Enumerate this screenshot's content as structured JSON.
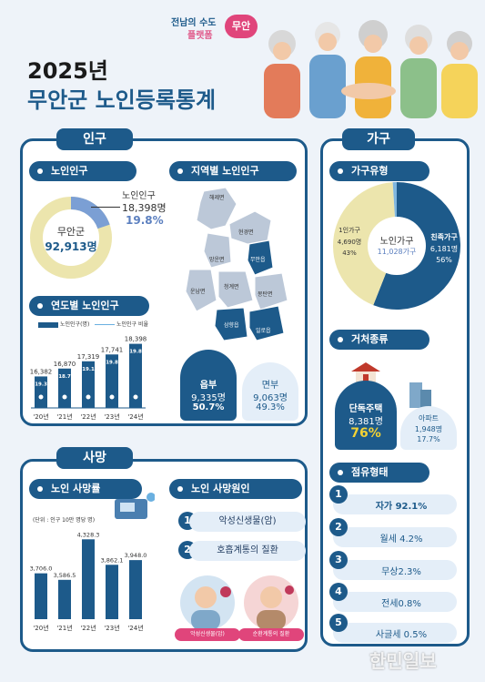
{
  "header": {
    "logo_line1": "전남의 수도",
    "logo_line2": "플랫폼",
    "logo_badge": "무안",
    "year": "2025년",
    "title": "무안군 노인등록통계",
    "watermark": "한민일보"
  },
  "population": {
    "tab": "인구",
    "elderly_header": "노인인구",
    "county_label": "무안군",
    "county_total": "92,913명",
    "elderly_label": "노인인구",
    "elderly_count": "18,398명",
    "elderly_ratio": "19.8%",
    "yearly_header": "연도별 노인인구",
    "legend_count": "노인인구(명)",
    "legend_ratio": "노인인구 비율"
  },
  "region": {
    "header": "지역별 노인인구",
    "area_labels": [
      "해제면",
      "현경면",
      "운남면",
      "망운면",
      "청계면",
      "무안읍",
      "몽탄면",
      "삼향읍",
      "일로읍"
    ],
    "eup_label": "읍부",
    "eup_count": "9,335명",
    "eup_ratio": "50.7%",
    "myeon_label": "면부",
    "myeon_count": "9,063명",
    "myeon_ratio": "49.3%"
  },
  "household": {
    "tab": "가구",
    "type_header": "가구유형",
    "center_label": "노인가구",
    "center_value": "11,028가구",
    "kin_label": "친족가구",
    "kin_count": "6,181명",
    "kin_ratio": "56%",
    "single_label": "1인가구",
    "single_count": "4,690명",
    "single_ratio": "43%",
    "residence_header": "거처종류",
    "house_label": "단독주택",
    "house_count": "8,381명",
    "house_ratio": "76%",
    "apt_label": "아파트",
    "apt_count": "1,948명",
    "apt_ratio": "17.7%",
    "tenure_header": "점유형태",
    "tenure": [
      {
        "num": "1",
        "label": "자가 92.1%"
      },
      {
        "num": "2",
        "label": "월세 4.2%"
      },
      {
        "num": "3",
        "label": "무상2.3%"
      },
      {
        "num": "4",
        "label": "전세0.8%"
      },
      {
        "num": "5",
        "label": "사글세 0.5%"
      }
    ]
  },
  "death": {
    "tab": "사망",
    "rate_header": "노인 사망률",
    "unit_note": "(단위 : 인구 10만 명당 명)",
    "cause_header": "노인 사망원인",
    "causes": [
      {
        "num": "1",
        "label": "악성신생물(암)"
      },
      {
        "num": "2",
        "label": "호흡계통의 질환"
      }
    ],
    "badge1": "악성신생물(암)",
    "badge2": "순환계통의 질환"
  },
  "chart_data": [
    {
      "type": "bar",
      "title": "연도별 노인인구",
      "categories": [
        "'20년",
        "'21년",
        "'22년",
        "'23년",
        "'24년"
      ],
      "series": [
        {
          "name": "노인인구(명)",
          "values": [
            16382,
            16870,
            17319,
            17741,
            18398
          ]
        },
        {
          "name": "노인인구 비율",
          "values": [
            19.3,
            18.7,
            19.1,
            19.8,
            19.8
          ]
        }
      ]
    },
    {
      "type": "bar",
      "title": "노인 사망률",
      "categories": [
        "'20년",
        "'21년",
        "'22년",
        "'23년",
        "'24년"
      ],
      "values": [
        3706.0,
        3586.5,
        4328.3,
        3862.1,
        3948.0
      ]
    },
    {
      "type": "pie",
      "title": "노인인구",
      "categories": [
        "노인인구",
        "기타"
      ],
      "values": [
        19.8,
        80.2
      ],
      "colors": [
        "#7b9fd4",
        "#ece5ad"
      ]
    },
    {
      "type": "pie",
      "title": "가구유형",
      "categories": [
        "친족가구",
        "1인가구",
        "기타"
      ],
      "values": [
        56,
        43,
        1
      ],
      "colors": [
        "#1d5a8a",
        "#ece5ad",
        "#7fb6df"
      ]
    }
  ],
  "colors": {
    "primary": "#1d5a8a",
    "light": "#e4eef8",
    "cream": "#ece5ad",
    "accent": "#f2d235"
  }
}
